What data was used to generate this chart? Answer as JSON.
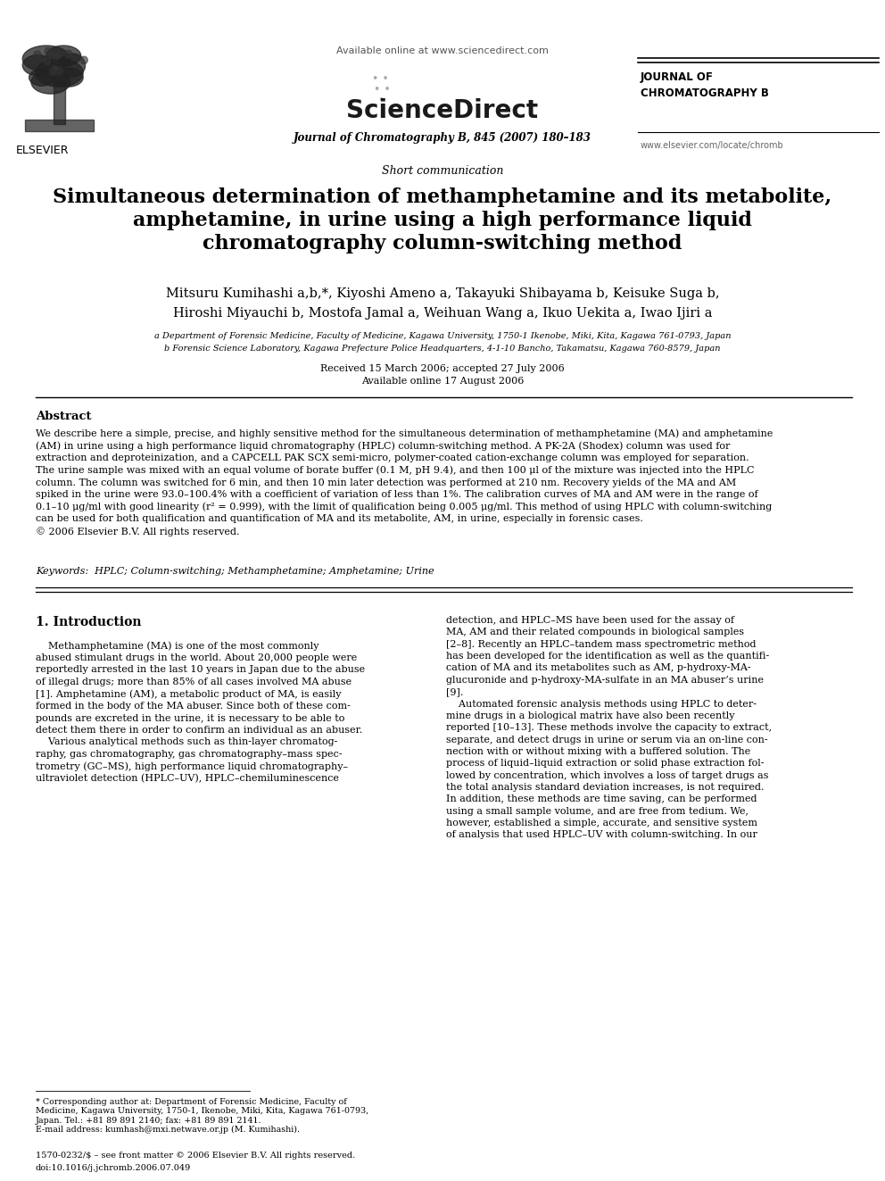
{
  "bg_color": "#ffffff",
  "page_width": 9.92,
  "page_height": 13.23,
  "dpi": 100,
  "available_online": "Available online at www.sciencedirect.com",
  "sciencedirect": "ScienceDirect",
  "journal_name_top": "JOURNAL OF\nCHROMATOGRAPHY B",
  "journal_ref": "Journal of Chromatography B, 845 (2007) 180–183",
  "website": "www.elsevier.com/locate/chromb",
  "elsevier_text": "ELSEVIER",
  "article_type": "Short communication",
  "title_line1": "Simultaneous determination of methamphetamine and its metabolite,",
  "title_line2": "amphetamine, in urine using a high performance liquid",
  "title_line3": "chromatography column-switching method",
  "authors_line1": "Mitsuru Kumihashi a,b,*, Kiyoshi Ameno a, Takayuki Shibayama b, Keisuke Suga b,",
  "authors_line2": "Hiroshi Miyauchi b, Mostofa Jamal a, Weihuan Wang a, Ikuo Uekita a, Iwao Ijiri a",
  "affil_a": "a Department of Forensic Medicine, Faculty of Medicine, Kagawa University, 1750-1 Ikenobe, Miki, Kita, Kagawa 761-0793, Japan",
  "affil_b": "b Forensic Science Laboratory, Kagawa Prefecture Police Headquarters, 4-1-10 Bancho, Takamatsu, Kagawa 760-8579, Japan",
  "received": "Received 15 March 2006; accepted 27 July 2006",
  "available_online2": "Available online 17 August 2006",
  "abstract_title": "Abstract",
  "abstract_text": "We describe here a simple, precise, and highly sensitive method for the simultaneous determination of methamphetamine (MA) and amphetamine\n(AM) in urine using a high performance liquid chromatography (HPLC) column-switching method. A PK-2A (Shodex) column was used for\nextraction and deproteinization, and a CAPCELL PAK SCX semi-micro, polymer-coated cation-exchange column was employed for separation.\nThe urine sample was mixed with an equal volume of borate buffer (0.1 M, pH 9.4), and then 100 μl of the mixture was injected into the HPLC\ncolumn. The column was switched for 6 min, and then 10 min later detection was performed at 210 nm. Recovery yields of the MA and AM\nspiked in the urine were 93.0–100.4% with a coefficient of variation of less than 1%. The calibration curves of MA and AM were in the range of\n0.1–10 μg/ml with good linearity (r² = 0.999), with the limit of qualification being 0.005 μg/ml. This method of using HPLC with column-switching\ncan be used for both qualification and quantification of MA and its metabolite, AM, in urine, especially in forensic cases.\n© 2006 Elsevier B.V. All rights reserved.",
  "keywords": "Keywords:  HPLC; Column-switching; Methamphetamine; Amphetamine; Urine",
  "section1_title": "1. Introduction",
  "intro_col1": "    Methamphetamine (MA) is one of the most commonly\nabused stimulant drugs in the world. About 20,000 people were\nreportedly arrested in the last 10 years in Japan due to the abuse\nof illegal drugs; more than 85% of all cases involved MA abuse\n[1]. Amphetamine (AM), a metabolic product of MA, is easily\nformed in the body of the MA abuser. Since both of these com-\npounds are excreted in the urine, it is necessary to be able to\ndetect them there in order to confirm an individual as an abuser.\n    Various analytical methods such as thin-layer chromatog-\nraphy, gas chromatography, gas chromatography–mass spec-\ntrometry (GC–MS), high performance liquid chromatography–\nultraviolet detection (HPLC–UV), HPLC–chemiluminescence",
  "intro_col2": "detection, and HPLC–MS have been used for the assay of\nMA, AM and their related compounds in biological samples\n[2–8]. Recently an HPLC–tandem mass spectrometric method\nhas been developed for the identification as well as the quantifi-\ncation of MA and its metabolites such as AM, p-hydroxy-MA-\nglucuronide and p-hydroxy-MA-sulfate in an MA abuser’s urine\n[9].\n    Automated forensic analysis methods using HPLC to deter-\nmine drugs in a biological matrix have also been recently\nreported [10–13]. These methods involve the capacity to extract,\nseparate, and detect drugs in urine or serum via an on-line con-\nnection with or without mixing with a buffered solution. The\nprocess of liquid–liquid extraction or solid phase extraction fol-\nlowed by concentration, which involves a loss of target drugs as\nthe total analysis standard deviation increases, is not required.\nIn addition, these methods are time saving, can be performed\nusing a small sample volume, and are free from tedium. We,\nhowever, established a simple, accurate, and sensitive system\nof analysis that used HPLC–UV with column-switching. In our",
  "footnote": "* Corresponding author at: Department of Forensic Medicine, Faculty of\nMedicine, Kagawa University, 1750-1, Ikenobe, Miki, Kita, Kagawa 761-0793,\nJapan. Tel.: +81 89 891 2140; fax: +81 89 891 2141.\nE-mail address: kumhash@mxi.netwave.or.jp (M. Kumihashi).",
  "footer1": "1570-0232/$ – see front matter © 2006 Elsevier B.V. All rights reserved.",
  "footer2": "doi:10.1016/j.jchromb.2006.07.049"
}
